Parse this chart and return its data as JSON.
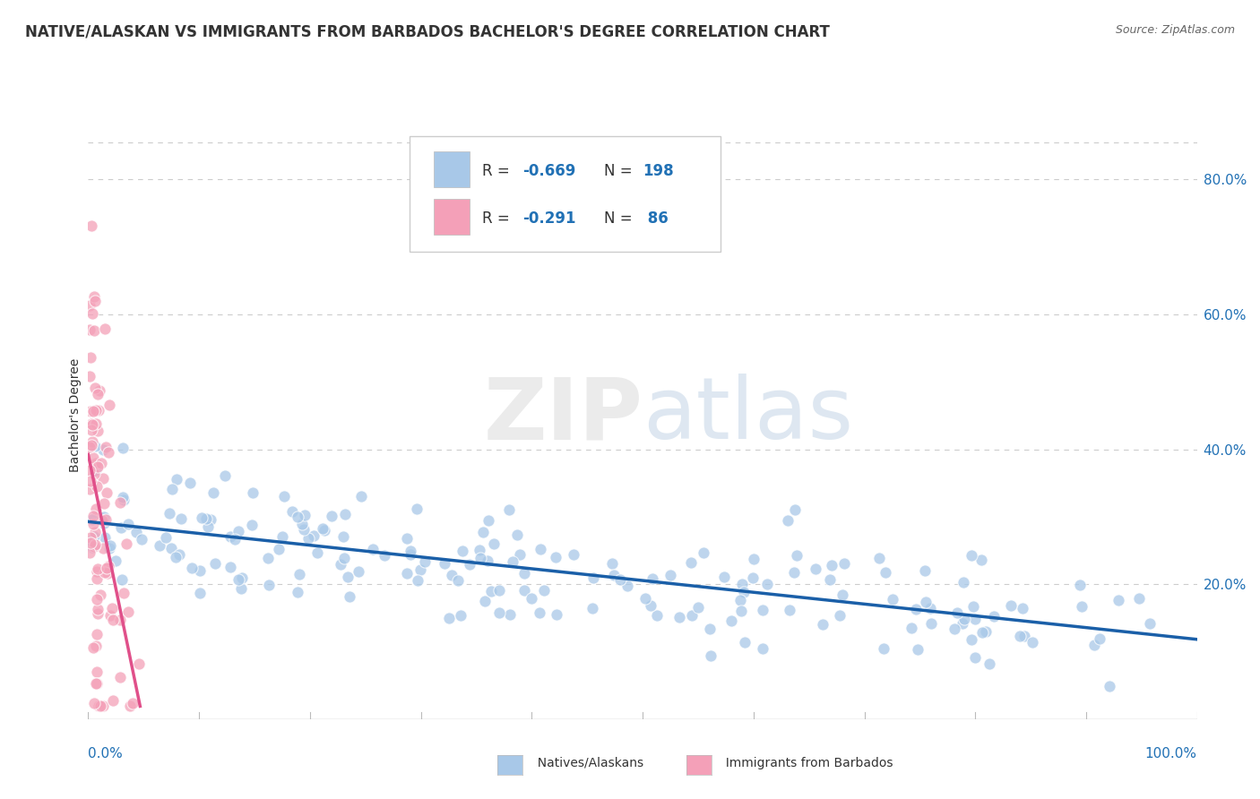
{
  "title": "NATIVE/ALASKAN VS IMMIGRANTS FROM BARBADOS BACHELOR'S DEGREE CORRELATION CHART",
  "source": "Source: ZipAtlas.com",
  "ylabel": "Bachelor's Degree",
  "right_yticks": [
    "80.0%",
    "60.0%",
    "40.0%",
    "20.0%"
  ],
  "right_ytick_vals": [
    0.8,
    0.6,
    0.4,
    0.2
  ],
  "blue_color": "#a8c8e8",
  "pink_color": "#f4a0b8",
  "blue_line_color": "#1a5fa8",
  "pink_line_color": "#e0508a",
  "legend_text_color": "#2171b5",
  "background_color": "#ffffff",
  "grid_color": "#cccccc",
  "title_fontsize": 12,
  "blue_seed": 42,
  "pink_seed": 7,
  "blue_n": 198,
  "pink_n": 86,
  "blue_R": -0.669,
  "pink_R": -0.291,
  "xmin": 0.0,
  "xmax": 1.0,
  "ymin": 0.0,
  "ymax": 0.9
}
